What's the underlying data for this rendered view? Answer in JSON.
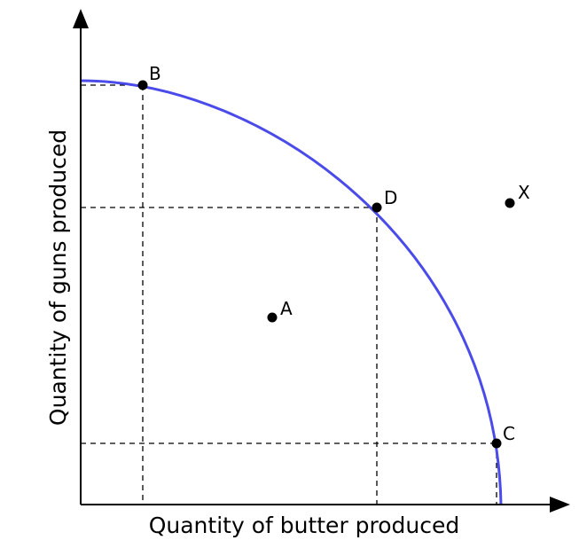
{
  "figure": {
    "x_axis_label": "Quantity of butter produced",
    "y_axis_label": "Quantity of guns produced",
    "curve_color": "#4b4bea",
    "axis_color": "#000000",
    "point_color": "#000000"
  },
  "points": {
    "B": {
      "label": "B",
      "on_frontier": true
    },
    "D": {
      "label": "D",
      "on_frontier": true
    },
    "C": {
      "label": "C",
      "on_frontier": true
    },
    "A": {
      "label": "A",
      "on_frontier": false
    },
    "X": {
      "label": "X",
      "on_frontier": false
    }
  }
}
